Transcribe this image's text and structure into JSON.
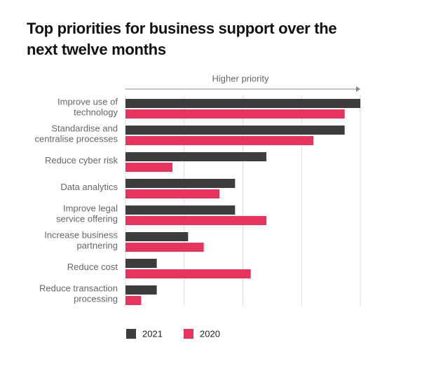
{
  "chart_data": {
    "type": "bar",
    "orientation": "horizontal",
    "title": "Top priorities for business support over the next twelve months",
    "annotation": "Higher priority",
    "categories": [
      [
        "Improve use of",
        "technology"
      ],
      [
        "Standardise and",
        "centralise processes"
      ],
      [
        "Reduce cyber risk"
      ],
      [
        "Data analytics"
      ],
      [
        "Improve legal",
        "service offering"
      ],
      [
        "Increase business",
        "partnering"
      ],
      [
        "Reduce cost"
      ],
      [
        "Reduce transaction",
        "processing"
      ]
    ],
    "series": [
      {
        "name": "2021",
        "color": "#3d3d3d",
        "values": [
          15,
          14,
          9,
          7,
          7,
          4,
          2,
          2
        ]
      },
      {
        "name": "2020",
        "color": "#e8335f",
        "values": [
          14,
          12,
          3,
          6,
          9,
          5,
          8,
          1
        ]
      }
    ],
    "xlim": [
      0,
      15
    ],
    "xticks": [
      0,
      3.75,
      7.5,
      11.25,
      15
    ],
    "grid": true,
    "legend": "bottom-left"
  }
}
